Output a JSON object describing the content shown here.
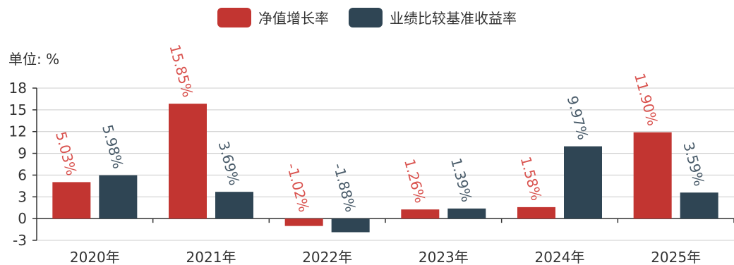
{
  "legend": {
    "items": [
      {
        "label": "净值增长率",
        "color": "#c23531"
      },
      {
        "label": "业绩比较基准收益率",
        "color": "#2f4554"
      }
    ]
  },
  "unit_label": "单位: %",
  "chart_data": {
    "type": "bar",
    "categories": [
      "2020年",
      "2021年",
      "2022年",
      "2023年",
      "2024年",
      "2025年"
    ],
    "series": [
      {
        "name": "净值增长率",
        "color": "#c23531",
        "values": [
          5.03,
          15.85,
          -1.02,
          1.26,
          1.58,
          11.9
        ],
        "labels": [
          "5.03%",
          "15.85%",
          "-1.02%",
          "1.26%",
          "1.58%",
          "11.90%"
        ]
      },
      {
        "name": "业绩比较基准收益率",
        "color": "#2f4554",
        "values": [
          5.98,
          3.69,
          -1.88,
          1.39,
          9.97,
          3.59
        ],
        "labels": [
          "5.98%",
          "3.69%",
          "-1.88%",
          "1.39%",
          "9.97%",
          "3.59%"
        ]
      }
    ],
    "yticks": [
      "-3",
      "0",
      "3",
      "6",
      "9",
      "12",
      "15",
      "18"
    ],
    "ylim": [
      -3,
      18
    ],
    "grid": true,
    "legend_position": "top"
  }
}
